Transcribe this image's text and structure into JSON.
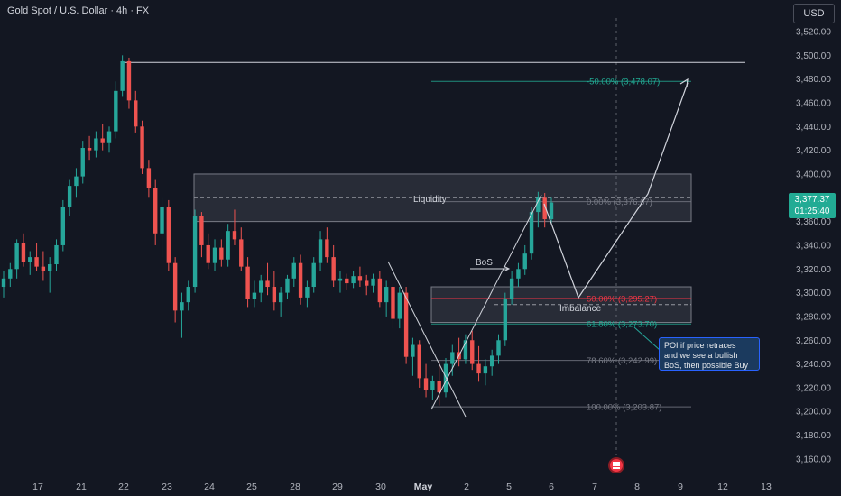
{
  "header": {
    "symbol_title": "Gold Spot / U.S. Dollar · 4h · FX",
    "currency_button": "USD"
  },
  "last_price": {
    "price": "3,377.37",
    "countdown": "01:25:40"
  },
  "annotations": {
    "liquidity": "Liquidity",
    "bos": "BoS",
    "imbalance": "Imbalance",
    "poi_note": [
      "POI if price retraces",
      "and we see a bullish",
      "BoS, then possible Buy"
    ]
  },
  "fib_levels": [
    {
      "label": "-50.00% (3,478.07)",
      "price": 3478.07,
      "color": "#22ab94"
    },
    {
      "label": "0.00% (3,376.67)",
      "price": 3376.67,
      "color": "#787b86"
    },
    {
      "label": "50.00% (3,295.27)",
      "price": 3295.27,
      "color": "#f23645"
    },
    {
      "label": "61.80% (3,273.70)",
      "price": 3273.7,
      "color": "#22ab94"
    },
    {
      "label": "78.60% (3,242.99)",
      "price": 3242.99,
      "color": "#787b86"
    },
    {
      "label": "100.00% (3,203.87)",
      "price": 3203.87,
      "color": "#787b86"
    }
  ],
  "chart_data": {
    "type": "candlestick",
    "title": "Gold Spot / U.S. Dollar · 4h · FX",
    "x_ticks": [
      "17",
      "21",
      "22",
      "23",
      "24",
      "25",
      "28",
      "29",
      "30",
      "May",
      "2",
      "5",
      "6",
      "7",
      "8",
      "9",
      "12",
      "13"
    ],
    "y_ticks": [
      "3,520.00",
      "3,500.00",
      "3,480.00",
      "3,460.00",
      "3,440.00",
      "3,420.00",
      "3,400.00",
      "3,380.00",
      "3,360.00",
      "3,340.00",
      "3,320.00",
      "3,300.00",
      "3,280.00",
      "3,260.00",
      "3,240.00",
      "3,220.00",
      "3,200.00",
      "3,180.00",
      "3,160.00"
    ],
    "ylim": [
      3150,
      3530
    ],
    "zones": [
      {
        "name": "liquidity-zone",
        "top": 3400,
        "bottom": 3360
      },
      {
        "name": "imbalance-zone",
        "top": 3305,
        "bottom": 3275
      }
    ],
    "horizontal_lines": [
      {
        "name": "high-line",
        "price": 3494
      }
    ],
    "candles": [
      [
        3305,
        3318,
        3296,
        3312
      ],
      [
        3312,
        3325,
        3305,
        3320
      ],
      [
        3320,
        3345,
        3312,
        3342
      ],
      [
        3342,
        3350,
        3322,
        3326
      ],
      [
        3326,
        3335,
        3315,
        3330
      ],
      [
        3330,
        3342,
        3318,
        3322
      ],
      [
        3322,
        3335,
        3310,
        3318
      ],
      [
        3318,
        3330,
        3300,
        3324
      ],
      [
        3324,
        3345,
        3318,
        3340
      ],
      [
        3340,
        3378,
        3335,
        3372
      ],
      [
        3372,
        3395,
        3365,
        3390
      ],
      [
        3390,
        3405,
        3380,
        3398
      ],
      [
        3398,
        3428,
        3392,
        3422
      ],
      [
        3422,
        3432,
        3412,
        3420
      ],
      [
        3420,
        3436,
        3414,
        3430
      ],
      [
        3430,
        3442,
        3420,
        3426
      ],
      [
        3426,
        3440,
        3418,
        3436
      ],
      [
        3436,
        3478,
        3430,
        3470
      ],
      [
        3470,
        3500,
        3465,
        3495
      ],
      [
        3495,
        3498,
        3455,
        3462
      ],
      [
        3462,
        3470,
        3435,
        3440
      ],
      [
        3440,
        3445,
        3400,
        3405
      ],
      [
        3405,
        3412,
        3380,
        3388
      ],
      [
        3388,
        3395,
        3340,
        3350
      ],
      [
        3350,
        3380,
        3330,
        3372
      ],
      [
        3372,
        3378,
        3318,
        3325
      ],
      [
        3325,
        3330,
        3275,
        3285
      ],
      [
        3285,
        3300,
        3262,
        3292
      ],
      [
        3292,
        3310,
        3285,
        3305
      ],
      [
        3305,
        3370,
        3300,
        3365
      ],
      [
        3365,
        3368,
        3330,
        3340
      ],
      [
        3340,
        3350,
        3320,
        3325
      ],
      [
        3325,
        3345,
        3318,
        3338
      ],
      [
        3338,
        3345,
        3322,
        3328
      ],
      [
        3328,
        3358,
        3322,
        3352
      ],
      [
        3352,
        3370,
        3340,
        3345
      ],
      [
        3345,
        3355,
        3318,
        3322
      ],
      [
        3322,
        3330,
        3288,
        3295
      ],
      [
        3295,
        3310,
        3288,
        3300
      ],
      [
        3300,
        3315,
        3292,
        3310
      ],
      [
        3310,
        3325,
        3298,
        3305
      ],
      [
        3305,
        3318,
        3285,
        3292
      ],
      [
        3292,
        3305,
        3280,
        3300
      ],
      [
        3300,
        3315,
        3295,
        3312
      ],
      [
        3312,
        3330,
        3305,
        3325
      ],
      [
        3325,
        3332,
        3290,
        3296
      ],
      [
        3296,
        3310,
        3288,
        3305
      ],
      [
        3305,
        3330,
        3300,
        3325
      ],
      [
        3325,
        3352,
        3318,
        3345
      ],
      [
        3345,
        3355,
        3325,
        3330
      ],
      [
        3330,
        3340,
        3305,
        3310
      ],
      [
        3310,
        3318,
        3300,
        3312
      ],
      [
        3312,
        3316,
        3302,
        3308
      ],
      [
        3308,
        3318,
        3304,
        3314
      ],
      [
        3314,
        3322,
        3305,
        3310
      ],
      [
        3310,
        3315,
        3298,
        3306
      ],
      [
        3306,
        3316,
        3300,
        3312
      ],
      [
        3312,
        3318,
        3288,
        3292
      ],
      [
        3292,
        3310,
        3280,
        3305
      ],
      [
        3305,
        3308,
        3270,
        3278
      ],
      [
        3278,
        3305,
        3270,
        3300
      ],
      [
        3300,
        3305,
        3240,
        3246
      ],
      [
        3246,
        3262,
        3230,
        3256
      ],
      [
        3256,
        3260,
        3220,
        3228
      ],
      [
        3228,
        3240,
        3212,
        3218
      ],
      [
        3218,
        3230,
        3210,
        3226
      ],
      [
        3226,
        3242,
        3205,
        3216
      ],
      [
        3216,
        3245,
        3212,
        3240
      ],
      [
        3240,
        3256,
        3230,
        3250
      ],
      [
        3250,
        3262,
        3238,
        3244
      ],
      [
        3244,
        3265,
        3240,
        3260
      ],
      [
        3260,
        3268,
        3235,
        3240
      ],
      [
        3240,
        3255,
        3225,
        3232
      ],
      [
        3232,
        3244,
        3222,
        3238
      ],
      [
        3238,
        3252,
        3230,
        3247
      ],
      [
        3247,
        3265,
        3240,
        3260
      ],
      [
        3260,
        3300,
        3255,
        3295
      ],
      [
        3295,
        3318,
        3290,
        3312
      ],
      [
        3312,
        3325,
        3305,
        3320
      ],
      [
        3320,
        3340,
        3315,
        3333
      ],
      [
        3333,
        3372,
        3328,
        3368
      ],
      [
        3368,
        3385,
        3355,
        3380
      ],
      [
        3380,
        3384,
        3355,
        3362
      ],
      [
        3362,
        3380,
        3358,
        3376
      ]
    ]
  }
}
